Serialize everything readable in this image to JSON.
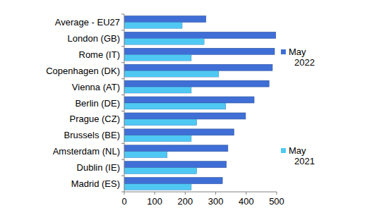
{
  "chart_data": {
    "type": "bar",
    "orientation": "horizontal",
    "legend": "right",
    "categories": [
      "Average - EU27",
      "London (GB)",
      "Rome (IT)",
      "Copenhagen (DK)",
      "Vienna (AT)",
      "Berlin (DE)",
      "Prague (CZ)",
      "Brussels (BE)",
      "Amsterdam (NL)",
      "Dublin (IE)",
      "Madrid (ES)"
    ],
    "series": [
      {
        "name": "May 2022",
        "color": "#3f6fd6",
        "values": [
          268,
          497,
          493,
          486,
          475,
          426,
          398,
          360,
          340,
          335,
          322
        ]
      },
      {
        "name": "May 2021",
        "color": "#4fc9f3",
        "values": [
          190,
          262,
          220,
          310,
          220,
          333,
          238,
          220,
          141,
          238,
          220
        ]
      }
    ],
    "xlim": [
      0,
      500
    ],
    "xticks": [
      0,
      100,
      200,
      300,
      400,
      500
    ],
    "grid": false
  }
}
